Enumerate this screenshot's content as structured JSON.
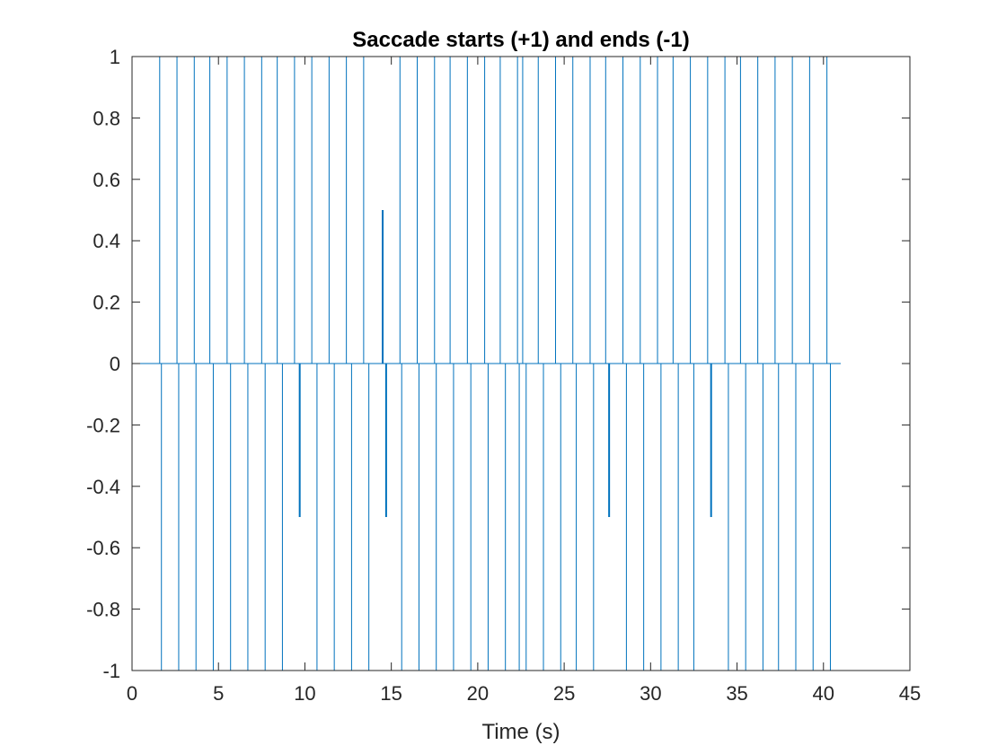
{
  "chart_data": {
    "type": "line",
    "title": "Saccade starts (+1) and ends (-1)",
    "xlabel": "Time (s)",
    "ylabel": "",
    "xlim": [
      0,
      45
    ],
    "ylim": [
      -1,
      1
    ],
    "xticks": [
      "0",
      "5",
      "10",
      "15",
      "20",
      "25",
      "30",
      "35",
      "40",
      "45"
    ],
    "yticks": [
      "-1",
      "-0.8",
      "-0.6",
      "-0.4",
      "-0.2",
      "0",
      "0.2",
      "0.4",
      "0.6",
      "0.8",
      "1"
    ],
    "x_range_of_signal": [
      0,
      41
    ],
    "series": [
      {
        "color": "#0072BD",
        "starts": [
          {
            "x": 1.6,
            "y": 1
          },
          {
            "x": 2.6,
            "y": 1
          },
          {
            "x": 3.6,
            "y": 1
          },
          {
            "x": 4.5,
            "y": 1
          },
          {
            "x": 5.5,
            "y": 1
          },
          {
            "x": 6.5,
            "y": 1
          },
          {
            "x": 7.5,
            "y": 1
          },
          {
            "x": 8.4,
            "y": 1
          },
          {
            "x": 9.4,
            "y": 1
          },
          {
            "x": 10.4,
            "y": 1
          },
          {
            "x": 11.4,
            "y": 1
          },
          {
            "x": 12.4,
            "y": 1
          },
          {
            "x": 13.4,
            "y": 1
          },
          {
            "x": 14.5,
            "y": 0.5
          },
          {
            "x": 15.5,
            "y": 1
          },
          {
            "x": 16.5,
            "y": 1
          },
          {
            "x": 17.5,
            "y": 1
          },
          {
            "x": 18.4,
            "y": 1
          },
          {
            "x": 19.4,
            "y": 1
          },
          {
            "x": 20.4,
            "y": 1
          },
          {
            "x": 21.3,
            "y": 1
          },
          {
            "x": 22.3,
            "y": 1
          },
          {
            "x": 22.6,
            "y": 1
          },
          {
            "x": 23.5,
            "y": 1
          },
          {
            "x": 24.5,
            "y": 1
          },
          {
            "x": 25.5,
            "y": 1
          },
          {
            "x": 26.5,
            "y": 1
          },
          {
            "x": 27.4,
            "y": 1
          },
          {
            "x": 28.4,
            "y": 1
          },
          {
            "x": 29.4,
            "y": 1
          },
          {
            "x": 30.4,
            "y": 1
          },
          {
            "x": 31.3,
            "y": 1
          },
          {
            "x": 32.3,
            "y": 1
          },
          {
            "x": 33.3,
            "y": 1
          },
          {
            "x": 34.3,
            "y": 1
          },
          {
            "x": 35.2,
            "y": 1
          },
          {
            "x": 36.2,
            "y": 1
          },
          {
            "x": 37.2,
            "y": 1
          },
          {
            "x": 38.2,
            "y": 1
          },
          {
            "x": 39.2,
            "y": 1
          },
          {
            "x": 40.2,
            "y": 1
          }
        ],
        "ends": [
          {
            "x": 1.7,
            "y": -1
          },
          {
            "x": 2.7,
            "y": -1
          },
          {
            "x": 3.7,
            "y": -1
          },
          {
            "x": 4.7,
            "y": -1
          },
          {
            "x": 5.7,
            "y": -1
          },
          {
            "x": 6.7,
            "y": -1
          },
          {
            "x": 7.7,
            "y": -1
          },
          {
            "x": 8.7,
            "y": -1
          },
          {
            "x": 9.7,
            "y": -0.5
          },
          {
            "x": 10.7,
            "y": -1
          },
          {
            "x": 11.7,
            "y": -1
          },
          {
            "x": 12.7,
            "y": -1
          },
          {
            "x": 13.7,
            "y": -1
          },
          {
            "x": 14.7,
            "y": -0.5
          },
          {
            "x": 15.6,
            "y": -1
          },
          {
            "x": 16.6,
            "y": -1
          },
          {
            "x": 17.6,
            "y": -1
          },
          {
            "x": 18.6,
            "y": -1
          },
          {
            "x": 19.6,
            "y": -1
          },
          {
            "x": 20.6,
            "y": -1
          },
          {
            "x": 21.6,
            "y": -1
          },
          {
            "x": 22.4,
            "y": -1
          },
          {
            "x": 22.8,
            "y": -1
          },
          {
            "x": 23.8,
            "y": -1
          },
          {
            "x": 24.8,
            "y": -1
          },
          {
            "x": 25.7,
            "y": -1
          },
          {
            "x": 26.7,
            "y": -1
          },
          {
            "x": 27.6,
            "y": -0.5
          },
          {
            "x": 28.6,
            "y": -1
          },
          {
            "x": 29.6,
            "y": -1
          },
          {
            "x": 30.6,
            "y": -1
          },
          {
            "x": 31.6,
            "y": -1
          },
          {
            "x": 32.5,
            "y": -1
          },
          {
            "x": 33.5,
            "y": -0.5
          },
          {
            "x": 34.5,
            "y": -1
          },
          {
            "x": 35.5,
            "y": -1
          },
          {
            "x": 36.5,
            "y": -1
          },
          {
            "x": 37.4,
            "y": -1
          },
          {
            "x": 38.4,
            "y": -1
          },
          {
            "x": 39.4,
            "y": -1
          },
          {
            "x": 40.4,
            "y": -1
          }
        ]
      }
    ],
    "grid": false,
    "legend": "none"
  }
}
